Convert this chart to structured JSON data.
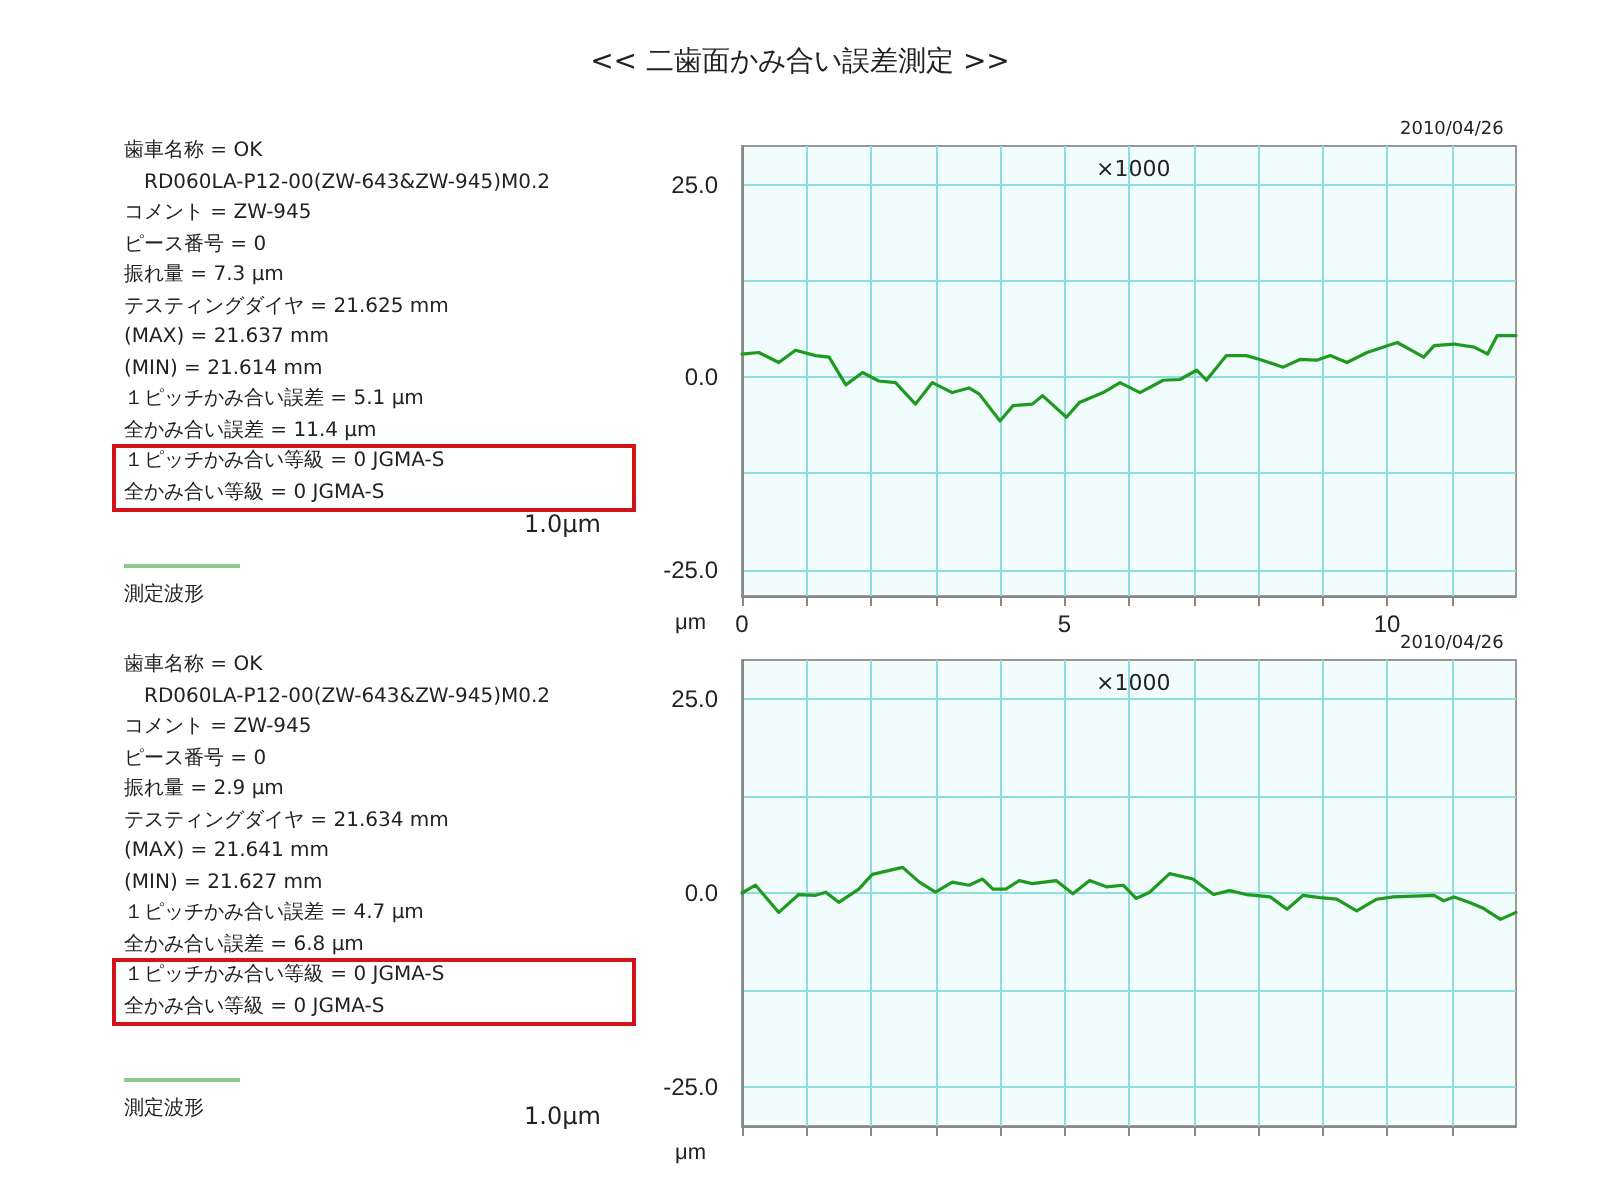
{
  "chart_data": [
    {
      "type": "line",
      "title": "<< 二歯面かみ合い誤差測定 >>",
      "ylabel": "μm",
      "annotations": [
        "歯車名称 = OK",
        "RD060LA-P12-00(ZW-643&ZW-945)M0.2",
        "コメント = ZW-945",
        "ピース番号 = 0",
        "振れ量 = 7.3 μm",
        "テスティングダイヤ = 21.625 mm",
        "(MAX) = 21.637 mm",
        "(MIN) = 21.614 mm",
        "１ピッチかみ合い誤差 = 5.1 μm",
        "全かみ合い誤差 = 11.4 μm",
        "１ピッチかみ合い等級 = 0 JGMA-S",
        "全かみ合い等級 = 0 JGMA-S",
        "測定波形",
        "1.0μm",
        "×1000",
        "2010/04/26"
      ],
      "series": [
        {
          "color": "#1f9a1f",
          "x": [
            0,
            0.26,
            0.57,
            0.83,
            1.14,
            1.35,
            1.61,
            1.87,
            2.12,
            2.38,
            2.69,
            2.95,
            3.26,
            3.52,
            3.68,
            4.0,
            4.2,
            4.5,
            4.66,
            5.03,
            5.23,
            5.6,
            5.86,
            6.17,
            6.53,
            6.79,
            7.05,
            7.2,
            7.51,
            7.82,
            8.03,
            8.39,
            8.65,
            8.91,
            9.12,
            9.38,
            9.69,
            10.16,
            10.57,
            10.73,
            11.04,
            11.35,
            11.56,
            11.71,
            12.0
          ],
          "values": [
            3.0,
            3.2,
            1.9,
            3.5,
            2.8,
            2.6,
            -1.0,
            0.6,
            -0.5,
            -0.7,
            -3.5,
            -0.7,
            -2.0,
            -1.4,
            -2.2,
            -5.7,
            -3.7,
            -3.5,
            -2.4,
            -5.2,
            -3.3,
            -2.0,
            -0.7,
            -2.0,
            -0.4,
            -0.3,
            0.9,
            -0.4,
            2.8,
            2.8,
            2.3,
            1.3,
            2.3,
            2.2,
            2.8,
            1.9,
            3.2,
            4.5,
            2.6,
            4.1,
            4.3,
            3.9,
            3.0,
            5.4,
            5.4
          ]
        }
      ],
      "xlim": [
        0,
        12
      ],
      "xticks": [
        0,
        {
          "value": 1,
          "label": null
        },
        {
          "value": 2,
          "label": null
        },
        {
          "value": 3,
          "label": null
        },
        {
          "value": 4,
          "label": null
        },
        5,
        {
          "value": 6,
          "label": null
        },
        {
          "value": 7,
          "label": null
        },
        {
          "value": 8,
          "label": null
        },
        {
          "value": 9,
          "label": null
        },
        10,
        {
          "value": 11,
          "label": null
        }
      ],
      "ylim": [
        -28.4,
        30
      ],
      "yticks": [
        {
          "value": -25,
          "label": "-25.0"
        },
        {
          "value": -12.5,
          "label": null
        },
        {
          "value": 0,
          "label": "0.0"
        },
        {
          "value": 12.5,
          "label": null
        },
        {
          "value": 25,
          "label": "25.0"
        }
      ],
      "grid": true,
      "marker": "none",
      "line_style": "solid"
    },
    {
      "type": "line",
      "ylabel": "μm",
      "annotations": [
        "歯車名称 = OK",
        "RD060LA-P12-00(ZW-643&ZW-945)M0.2",
        "コメント = ZW-945",
        "ピース番号 = 0",
        "振れ量 = 2.9 μm",
        "テスティングダイヤ = 21.634 mm",
        "(MAX) = 21.641 mm",
        "(MIN) = 21.627 mm",
        "１ピッチかみ合い誤差 = 4.7 μm",
        "全かみ合い誤差 = 6.8 μm",
        "１ピッチかみ合い等級 = 0 JGMA-S",
        "全かみ合い等級 = 0 JGMA-S",
        "測定波形",
        "1.0μm",
        "×1000",
        "2010/04/26"
      ],
      "series": [
        {
          "color": "#1f9a1f",
          "x": [
            0,
            0.21,
            0.57,
            0.88,
            1.14,
            1.3,
            1.5,
            1.81,
            2.02,
            2.49,
            2.75,
            3.0,
            3.26,
            3.52,
            3.73,
            3.89,
            4.09,
            4.3,
            4.5,
            4.87,
            5.13,
            5.39,
            5.65,
            5.91,
            6.11,
            6.32,
            6.63,
            6.99,
            7.31,
            7.56,
            7.82,
            8.19,
            8.45,
            8.7,
            8.96,
            9.22,
            9.53,
            9.84,
            10.1,
            10.73,
            10.88,
            11.04,
            11.3,
            11.5,
            11.76,
            12.0
          ],
          "values": [
            0,
            1.0,
            -2.5,
            -0.2,
            -0.3,
            0.1,
            -1.2,
            0.5,
            2.4,
            3.3,
            1.4,
            0.1,
            1.4,
            1.0,
            1.8,
            0.5,
            0.5,
            1.6,
            1.2,
            1.6,
            -0.1,
            1.6,
            0.8,
            1.0,
            -0.7,
            0.1,
            2.5,
            1.8,
            -0.2,
            0.3,
            -0.2,
            -0.5,
            -2.1,
            -0.3,
            -0.6,
            -0.8,
            -2.3,
            -0.8,
            -0.5,
            -0.3,
            -1.0,
            -0.5,
            -1.3,
            -2.0,
            -3.4,
            -2.5
          ]
        }
      ],
      "xlim": [
        0,
        12
      ],
      "xticks": [
        0,
        {
          "value": 1,
          "label": null
        },
        {
          "value": 2,
          "label": null
        },
        {
          "value": 3,
          "label": null
        },
        {
          "value": 4,
          "label": null
        },
        5,
        {
          "value": 6,
          "label": null
        },
        {
          "value": 7,
          "label": null
        },
        {
          "value": 8,
          "label": null
        },
        {
          "value": 9,
          "label": null
        },
        10,
        {
          "value": 11,
          "label": null
        }
      ],
      "ylim": [
        -30,
        30
      ],
      "yticks": [
        {
          "value": -25,
          "label": "-25.0"
        },
        {
          "value": -12.5,
          "label": null
        },
        {
          "value": 0,
          "label": "0.0"
        },
        {
          "value": 12.5,
          "label": null
        },
        {
          "value": 25,
          "label": "25.0"
        }
      ],
      "tick_labels": "y",
      "grid": true,
      "marker": "none",
      "line_style": "solid"
    }
  ]
}
